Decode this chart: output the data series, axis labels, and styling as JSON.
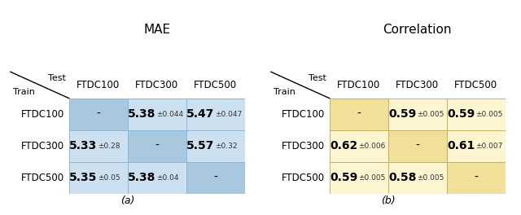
{
  "mae_title": "MAE",
  "corr_title": "Correlation",
  "col_labels": [
    "FTDC100",
    "FTDC300",
    "FTDC500"
  ],
  "row_labels": [
    "FTDC100",
    "FTDC300",
    "FTDC500"
  ],
  "mae_data": [
    [
      "-",
      "5.38",
      "±0.044",
      "5.47",
      "±0.047"
    ],
    [
      "5.33",
      "±0.28",
      "-",
      "5.57",
      "±0.32"
    ],
    [
      "5.35",
      "±0.05",
      "5.38",
      "±0.04",
      "-"
    ]
  ],
  "corr_data": [
    [
      "-",
      "0.59",
      "±0.005",
      "0.59",
      "±0.005"
    ],
    [
      "0.62",
      "±0.006",
      "-",
      "0.61",
      "±0.007"
    ],
    [
      "0.59",
      "±0.005",
      "0.58",
      "±0.005",
      "-"
    ]
  ],
  "mae_cell_color": "#cce0f0",
  "corr_cell_color": "#fdf5d0",
  "mae_diag_color": "#a8c8e0",
  "corr_diag_color": "#f0e098",
  "mae_border": "#88b8d8",
  "corr_border": "#c8b060",
  "caption_a": "(a)",
  "caption_b": "(b)",
  "main_fs": 10,
  "std_fs": 6.5,
  "label_fs": 8.5,
  "title_fs": 11
}
